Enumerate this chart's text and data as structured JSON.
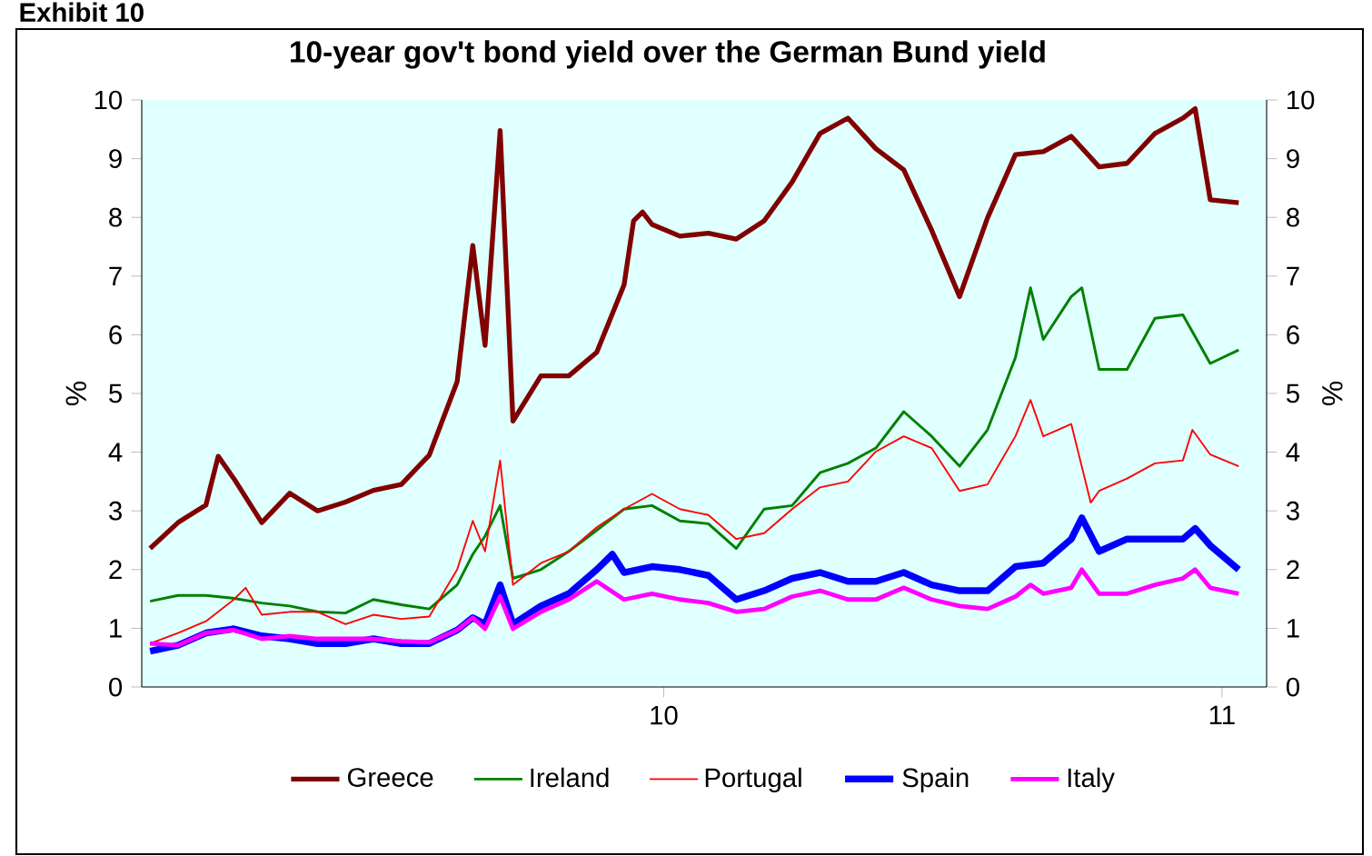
{
  "chart_data": {
    "type": "line",
    "title": "10-year gov't bond yield over the German Bund yield",
    "ylabel": "%",
    "y2label": "%",
    "annotations": [
      "Exhibit 10"
    ],
    "xlim": [
      2009.065,
      2011.08
    ],
    "xticks": [
      {
        "value": 2010,
        "label": "10"
      },
      {
        "value": 2011,
        "label": "11"
      }
    ],
    "ylim": [
      0,
      10
    ],
    "yticks": [
      0,
      1,
      2,
      3,
      4,
      5,
      6,
      7,
      8,
      9,
      10
    ],
    "y2lim": [
      0,
      10
    ],
    "y2ticks": [
      0,
      1,
      2,
      3,
      4,
      5,
      6,
      7,
      8,
      9,
      10
    ],
    "legend": "bottom",
    "series": [
      {
        "name": "Greece",
        "color": "#800000",
        "x": [
          2009.08,
          2009.13,
          2009.18,
          2009.202,
          2009.23,
          2009.28,
          2009.33,
          2009.38,
          2009.43,
          2009.48,
          2009.53,
          2009.58,
          2009.63,
          2009.658,
          2009.68,
          2009.707,
          2009.73,
          2009.78,
          2009.83,
          2009.88,
          2009.929,
          2009.946,
          2009.962,
          2009.979,
          2010.029,
          2010.08,
          2010.13,
          2010.18,
          2010.23,
          2010.28,
          2010.33,
          2010.38,
          2010.43,
          2010.48,
          2010.53,
          2010.58,
          2010.63,
          2010.68,
          2010.73,
          2010.78,
          2010.83,
          2010.88,
          2010.93,
          2010.952,
          2010.979,
          2011.03
        ],
        "values": [
          2.36,
          2.8,
          3.1,
          3.93,
          3.55,
          2.8,
          3.3,
          3.0,
          3.15,
          3.35,
          3.45,
          3.95,
          5.2,
          7.52,
          5.82,
          9.48,
          4.53,
          5.3,
          5.3,
          5.7,
          6.85,
          7.94,
          8.09,
          7.88,
          7.68,
          7.73,
          7.63,
          7.94,
          8.6,
          9.43,
          9.69,
          9.17,
          8.81,
          7.78,
          6.65,
          7.99,
          9.07,
          9.12,
          9.38,
          8.86,
          8.92,
          9.43,
          9.69,
          9.85,
          8.3,
          8.25
        ]
      },
      {
        "name": "Ireland",
        "color": "#008000",
        "x": [
          2009.08,
          2009.13,
          2009.18,
          2009.23,
          2009.28,
          2009.33,
          2009.38,
          2009.43,
          2009.48,
          2009.53,
          2009.58,
          2009.63,
          2009.658,
          2009.68,
          2009.707,
          2009.73,
          2009.78,
          2009.83,
          2009.88,
          2009.929,
          2009.979,
          2010.029,
          2010.08,
          2010.13,
          2010.18,
          2010.23,
          2010.28,
          2010.33,
          2010.38,
          2010.43,
          2010.48,
          2010.53,
          2010.58,
          2010.63,
          2010.657,
          2010.68,
          2010.73,
          2010.749,
          2010.78,
          2010.83,
          2010.88,
          2010.93,
          2010.979,
          2011.03
        ],
        "values": [
          1.46,
          1.56,
          1.56,
          1.51,
          1.43,
          1.38,
          1.28,
          1.26,
          1.49,
          1.4,
          1.33,
          1.74,
          2.26,
          2.57,
          3.09,
          1.85,
          2.0,
          2.31,
          2.67,
          3.03,
          3.09,
          2.83,
          2.78,
          2.36,
          3.03,
          3.09,
          3.65,
          3.81,
          4.07,
          4.69,
          4.27,
          3.76,
          4.38,
          5.61,
          6.8,
          5.92,
          6.65,
          6.8,
          5.41,
          5.41,
          6.28,
          6.34,
          5.51,
          5.74
        ]
      },
      {
        "name": "Portugal",
        "color": "#ff0000",
        "x": [
          2009.08,
          2009.13,
          2009.18,
          2009.23,
          2009.251,
          2009.28,
          2009.33,
          2009.38,
          2009.43,
          2009.48,
          2009.53,
          2009.58,
          2009.63,
          2009.658,
          2009.68,
          2009.707,
          2009.73,
          2009.78,
          2009.83,
          2009.88,
          2009.929,
          2009.979,
          2010.029,
          2010.08,
          2010.13,
          2010.18,
          2010.23,
          2010.28,
          2010.33,
          2010.38,
          2010.43,
          2010.48,
          2010.53,
          2010.58,
          2010.63,
          2010.657,
          2010.68,
          2010.73,
          2010.765,
          2010.78,
          2010.83,
          2010.88,
          2010.93,
          2010.947,
          2010.979,
          2011.03
        ],
        "values": [
          0.74,
          0.92,
          1.12,
          1.49,
          1.69,
          1.23,
          1.28,
          1.28,
          1.07,
          1.23,
          1.16,
          1.2,
          2.0,
          2.83,
          2.31,
          3.86,
          1.74,
          2.11,
          2.31,
          2.72,
          3.03,
          3.29,
          3.03,
          2.93,
          2.52,
          2.62,
          3.03,
          3.4,
          3.5,
          4.01,
          4.27,
          4.07,
          3.34,
          3.45,
          4.27,
          4.89,
          4.27,
          4.48,
          3.14,
          3.34,
          3.55,
          3.81,
          3.86,
          4.38,
          3.96,
          3.76
        ]
      },
      {
        "name": "Spain",
        "color": "#0000ff",
        "x": [
          2009.08,
          2009.13,
          2009.18,
          2009.23,
          2009.28,
          2009.33,
          2009.38,
          2009.43,
          2009.48,
          2009.53,
          2009.58,
          2009.63,
          2009.658,
          2009.68,
          2009.707,
          2009.73,
          2009.78,
          2009.83,
          2009.88,
          2009.908,
          2009.929,
          2009.979,
          2010.029,
          2010.08,
          2010.13,
          2010.18,
          2010.23,
          2010.28,
          2010.33,
          2010.38,
          2010.43,
          2010.48,
          2010.53,
          2010.58,
          2010.63,
          2010.68,
          2010.73,
          2010.749,
          2010.78,
          2010.83,
          2010.88,
          2010.93,
          2010.952,
          2010.979,
          2011.03
        ],
        "values": [
          0.61,
          0.71,
          0.92,
          0.99,
          0.87,
          0.82,
          0.74,
          0.74,
          0.82,
          0.74,
          0.74,
          0.97,
          1.18,
          1.07,
          1.74,
          1.07,
          1.38,
          1.59,
          2.0,
          2.26,
          1.95,
          2.05,
          2.0,
          1.9,
          1.49,
          1.64,
          1.85,
          1.95,
          1.8,
          1.8,
          1.95,
          1.74,
          1.64,
          1.64,
          2.05,
          2.11,
          2.52,
          2.88,
          2.31,
          2.52,
          2.52,
          2.52,
          2.7,
          2.41,
          2.0
        ]
      },
      {
        "name": "Italy",
        "color": "#ff00ff",
        "x": [
          2009.08,
          2009.13,
          2009.18,
          2009.23,
          2009.28,
          2009.33,
          2009.38,
          2009.43,
          2009.48,
          2009.53,
          2009.58,
          2009.63,
          2009.658,
          2009.68,
          2009.707,
          2009.73,
          2009.78,
          2009.83,
          2009.88,
          2009.929,
          2009.979,
          2010.029,
          2010.08,
          2010.13,
          2010.18,
          2010.23,
          2010.28,
          2010.33,
          2010.38,
          2010.43,
          2010.48,
          2010.53,
          2010.58,
          2010.63,
          2010.657,
          2010.68,
          2010.73,
          2010.749,
          2010.78,
          2010.83,
          2010.88,
          2010.93,
          2010.952,
          2010.979,
          2011.03
        ],
        "values": [
          0.74,
          0.71,
          0.92,
          0.97,
          0.82,
          0.87,
          0.82,
          0.82,
          0.82,
          0.78,
          0.76,
          0.97,
          1.18,
          0.99,
          1.54,
          0.99,
          1.28,
          1.49,
          1.8,
          1.49,
          1.59,
          1.49,
          1.43,
          1.28,
          1.33,
          1.54,
          1.64,
          1.49,
          1.49,
          1.69,
          1.49,
          1.38,
          1.33,
          1.54,
          1.74,
          1.59,
          1.69,
          2.0,
          1.59,
          1.59,
          1.74,
          1.85,
          2.0,
          1.69,
          1.59
        ]
      }
    ]
  }
}
